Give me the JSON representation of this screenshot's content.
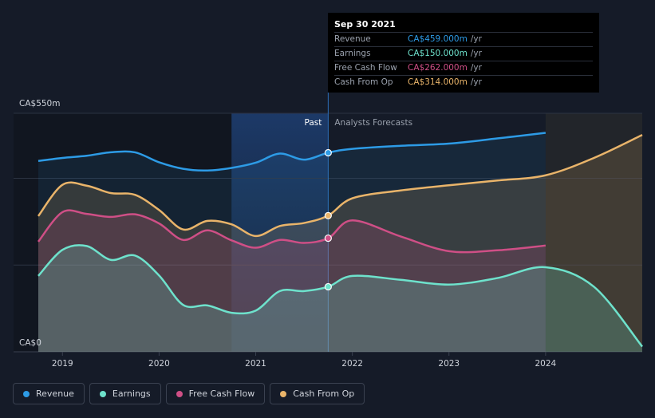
{
  "chart_data": {
    "type": "area",
    "title": "",
    "xlabel": "",
    "ylabel": "",
    "ylim": [
      0,
      550
    ],
    "y_tick_labels": [
      "CA$550m",
      "CA$0"
    ],
    "x_tick_labels": [
      "2019",
      "2020",
      "2021",
      "2022",
      "2023",
      "2024"
    ],
    "x_ticks": [
      2019,
      2020,
      2021,
      2022,
      2023,
      2024
    ],
    "divider": 2021.75,
    "highlight_start": 2020.75,
    "forecast_end": 2024,
    "past_label": "Past",
    "forecast_label": "Analysts Forecasts",
    "grid": true,
    "legend_position": "bottom",
    "colors": {
      "revenue": "#2d9be6",
      "earnings": "#6ee2cc",
      "fcf": "#cf4f86",
      "cfo": "#e9b46a"
    },
    "series": [
      {
        "key": "revenue",
        "name": "Revenue",
        "x": [
          2018.75,
          2019,
          2019.25,
          2019.5,
          2019.75,
          2020,
          2020.25,
          2020.5,
          2020.75,
          2021,
          2021.25,
          2021.5,
          2021.75,
          2022,
          2022.5,
          2023,
          2023.5,
          2024
        ],
        "y": [
          440,
          447,
          452,
          460,
          460,
          437,
          422,
          418,
          424,
          436,
          457,
          443,
          459,
          468,
          475,
          480,
          492,
          505
        ]
      },
      {
        "key": "earnings",
        "name": "Earnings",
        "x": [
          2018.75,
          2019,
          2019.25,
          2019.5,
          2019.75,
          2020,
          2020.25,
          2020.5,
          2020.75,
          2021,
          2021.25,
          2021.5,
          2021.75,
          2022,
          2022.5,
          2023,
          2023.5,
          2024,
          2024.5,
          2025
        ],
        "y": [
          175,
          235,
          244,
          212,
          222,
          176,
          108,
          107,
          90,
          95,
          140,
          140,
          150,
          175,
          166,
          155,
          170,
          195,
          150,
          12
        ]
      },
      {
        "key": "fcf",
        "name": "Free Cash Flow",
        "x": [
          2018.75,
          2019,
          2019.25,
          2019.5,
          2019.75,
          2020,
          2020.25,
          2020.5,
          2020.75,
          2021,
          2021.25,
          2021.5,
          2021.75,
          2022,
          2022.5,
          2023,
          2023.5,
          2024
        ],
        "y": [
          254,
          322,
          318,
          311,
          317,
          296,
          258,
          280,
          257,
          240,
          258,
          251,
          262,
          303,
          266,
          232,
          234,
          245
        ]
      },
      {
        "key": "cfo",
        "name": "Cash From Op",
        "x": [
          2018.75,
          2019,
          2019.25,
          2019.5,
          2019.75,
          2020,
          2020.25,
          2020.5,
          2020.75,
          2021,
          2021.25,
          2021.5,
          2021.75,
          2022,
          2022.5,
          2023,
          2023.5,
          2024,
          2024.5,
          2025
        ],
        "y": [
          313,
          385,
          383,
          366,
          362,
          327,
          282,
          302,
          294,
          267,
          290,
          297,
          314,
          354,
          372,
          384,
          395,
          407,
          447,
          500
        ]
      }
    ],
    "tooltip": {
      "date": "Sep 30 2021",
      "rows": [
        {
          "label": "Revenue",
          "value": "CA$459.000m",
          "unit": "/yr",
          "color": "#2d9be6"
        },
        {
          "label": "Earnings",
          "value": "CA$150.000m",
          "unit": "/yr",
          "color": "#6ee2cc"
        },
        {
          "label": "Free Cash Flow",
          "value": "CA$262.000m",
          "unit": "/yr",
          "color": "#cf4f86"
        },
        {
          "label": "Cash From Op",
          "value": "CA$314.000m",
          "unit": "/yr",
          "color": "#e9b46a"
        }
      ]
    }
  },
  "legend": [
    {
      "label": "Revenue",
      "color": "#2d9be6"
    },
    {
      "label": "Earnings",
      "color": "#6ee2cc"
    },
    {
      "label": "Free Cash Flow",
      "color": "#cf4f86"
    },
    {
      "label": "Cash From Op",
      "color": "#e9b46a"
    }
  ]
}
